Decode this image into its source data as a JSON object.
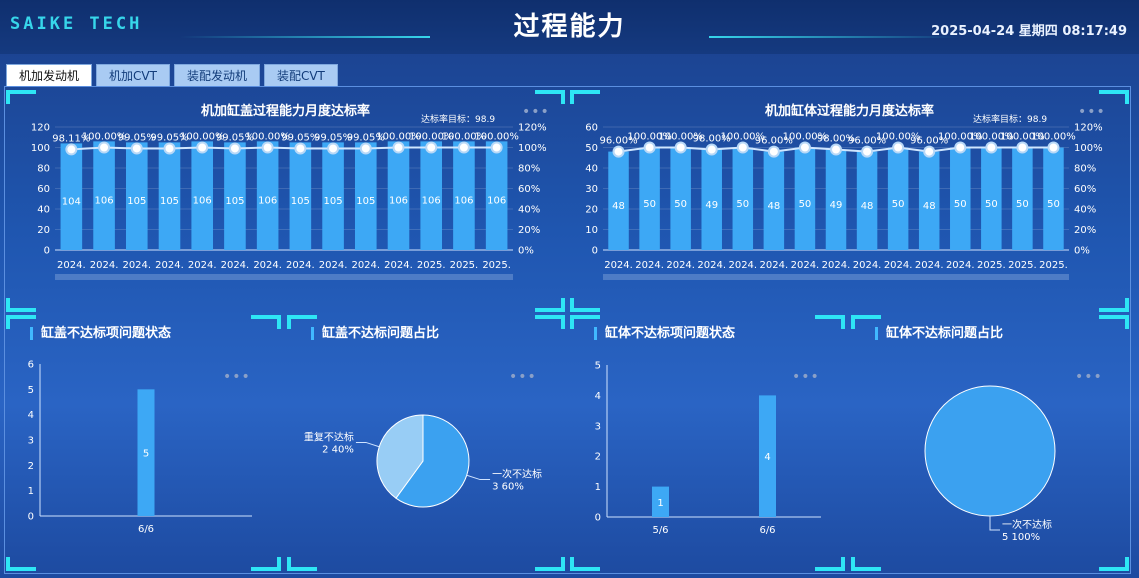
{
  "header": {
    "brand": "SAIKE TECH",
    "title": "过程能力",
    "datetime": "2025-04-24 星期四  08:17:49"
  },
  "tabs": [
    {
      "label": "机加发动机",
      "active": true
    },
    {
      "label": "机加CVT",
      "active": false
    },
    {
      "label": "装配发动机",
      "active": false
    },
    {
      "label": "装配CVT",
      "active": false
    }
  ],
  "panels": {
    "cover_monthly": {
      "title": "机加缸盖过程能力月度达标率",
      "target_label": "达标率目标：98.9"
    },
    "block_monthly": {
      "title": "机加缸体过程能力月度达标率",
      "target_label": "达标率目标：98.9"
    },
    "cover_status": {
      "title": "缸盖不达标项问题状态"
    },
    "cover_ratio": {
      "title": "缸盖不达标问题占比"
    },
    "block_status": {
      "title": "缸体不达标项问题状态"
    },
    "block_ratio": {
      "title": "缸体不达标问题占比"
    },
    "more_icon": "•••"
  },
  "chart_data": [
    {
      "type": "bar",
      "categories": [
        "2024.",
        "2024.",
        "2024.",
        "2024.",
        "2024.",
        "2024.",
        "2024.",
        "2024.",
        "2024.",
        "2024.",
        "2024.",
        "2025.",
        "2025.",
        "2025."
      ],
      "values": [
        104,
        106,
        105,
        105,
        106,
        105,
        106,
        105,
        105,
        105,
        106,
        106,
        106,
        106
      ],
      "line_values": [
        98.11,
        100.0,
        99.05,
        99.05,
        100.0,
        99.05,
        100.0,
        99.05,
        99.05,
        99.05,
        100.0,
        100.0,
        100.0,
        100.0
      ],
      "line_labels": [
        "98.11%",
        "100.00%",
        "99.05%",
        "99.05%",
        "100.00%",
        "99.05%",
        "100.00%",
        "99.05%",
        "99.05%",
        "99.05%",
        "100.00%",
        "100.00%",
        "100.00%",
        "100.00%"
      ],
      "ylim": [
        0,
        120
      ],
      "yticks": [
        "0",
        "20",
        "40",
        "60",
        "80",
        "100",
        "120"
      ],
      "y2lim": [
        0,
        120
      ],
      "y2ticks": [
        "0%",
        "20%",
        "40%",
        "60%",
        "80%",
        "100%",
        "120%"
      ]
    },
    {
      "type": "bar",
      "categories": [
        "2024.",
        "2024.",
        "2024.",
        "2024.",
        "2024.",
        "2024.",
        "2024.",
        "2024.",
        "2024.",
        "2024.",
        "2024.",
        "2024.",
        "2025.",
        "2025.",
        "2025."
      ],
      "values": [
        48,
        50,
        50,
        49,
        50,
        48,
        50,
        49,
        48,
        50,
        48,
        50,
        50,
        50,
        50
      ],
      "line_values": [
        96.0,
        100.0,
        100.0,
        98.0,
        100.0,
        96.0,
        100.0,
        98.0,
        96.0,
        100.0,
        96.0,
        100.0,
        100.0,
        100.0,
        100.0
      ],
      "line_labels": [
        "96.00%",
        "100.00%",
        "100.00%",
        "98.00%",
        "100.00%",
        "96.00%",
        "100.00%",
        "98.00%",
        "96.00%",
        "100.00%",
        "96.00%",
        "100.00%",
        "100.00%",
        "100.00%",
        "100.00%"
      ],
      "ylim": [
        0,
        60
      ],
      "yticks": [
        "0",
        "10",
        "20",
        "30",
        "40",
        "50",
        "60"
      ],
      "y2lim": [
        0,
        120
      ],
      "y2ticks": [
        "0%",
        "20%",
        "40%",
        "60%",
        "80%",
        "100%",
        "120%"
      ]
    },
    {
      "type": "bar",
      "categories": [
        "6/6"
      ],
      "values": [
        5
      ],
      "ylim": [
        0,
        6
      ],
      "yticks": [
        "0",
        "1",
        "2",
        "3",
        "4",
        "5",
        "6"
      ]
    },
    {
      "type": "pie",
      "slices": [
        {
          "label": "一次不达标",
          "value": 3,
          "percent": "60%",
          "color": "#3ba1f0"
        },
        {
          "label": "重复不达标",
          "value": 2,
          "percent": "40%",
          "color": "#98cdf5"
        }
      ]
    },
    {
      "type": "bar",
      "categories": [
        "5/6",
        "6/6"
      ],
      "values": [
        1,
        4
      ],
      "ylim": [
        0,
        5
      ],
      "yticks": [
        "0",
        "1",
        "2",
        "3",
        "4",
        "5"
      ]
    },
    {
      "type": "pie",
      "slices": [
        {
          "label": "一次不达标",
          "value": 5,
          "percent": "100%",
          "color": "#3ba1f0"
        }
      ]
    }
  ]
}
